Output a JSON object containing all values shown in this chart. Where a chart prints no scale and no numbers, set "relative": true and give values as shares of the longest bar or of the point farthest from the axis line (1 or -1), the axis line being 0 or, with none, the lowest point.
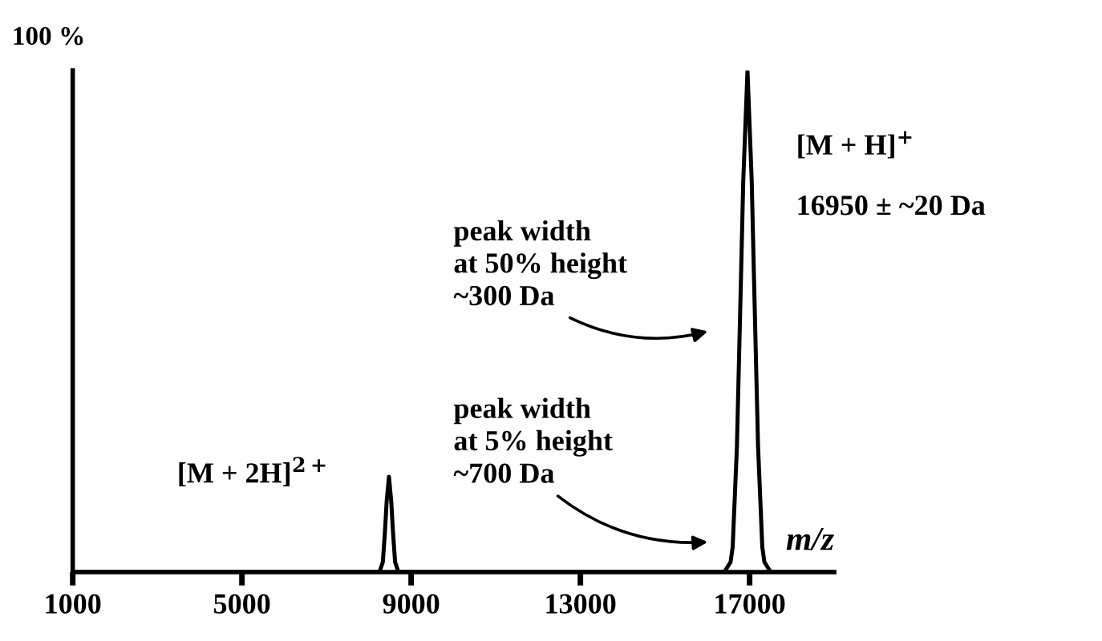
{
  "chart_data": {
    "type": "line",
    "xlabel": "m/z",
    "relative": true,
    "x": [
      1000,
      8250,
      8330,
      8380,
      8420,
      8475,
      8530,
      8570,
      8620,
      8700,
      16400,
      16550,
      16600,
      16700,
      16800,
      16850,
      16950,
      17050,
      17100,
      17200,
      17300,
      17350,
      17500,
      19000
    ],
    "series": [
      {
        "color": "#000000",
        "values": [
          0,
          0,
          0.02,
          0.08,
          0.14,
          0.19,
          0.14,
          0.08,
          0.02,
          0,
          0,
          0.02,
          0.05,
          0.25,
          0.6,
          0.78,
          1,
          0.78,
          0.6,
          0.25,
          0.05,
          0.02,
          0,
          0
        ]
      }
    ],
    "xlim": [
      1000,
      19000
    ],
    "xticks": [
      1000,
      5000,
      9000,
      13000,
      17000
    ],
    "grid": false,
    "legend": false,
    "marker": "none",
    "line_style": "solid",
    "annotations": [
      "100 %",
      "[M + 2H]$^{2+}$",
      "[M + H]$^{+}$",
      "16950 ± ~20 Da",
      "peak width\nat 50% height\n~300 Da",
      "peak width\nat 5% height\n~700 Da"
    ]
  }
}
